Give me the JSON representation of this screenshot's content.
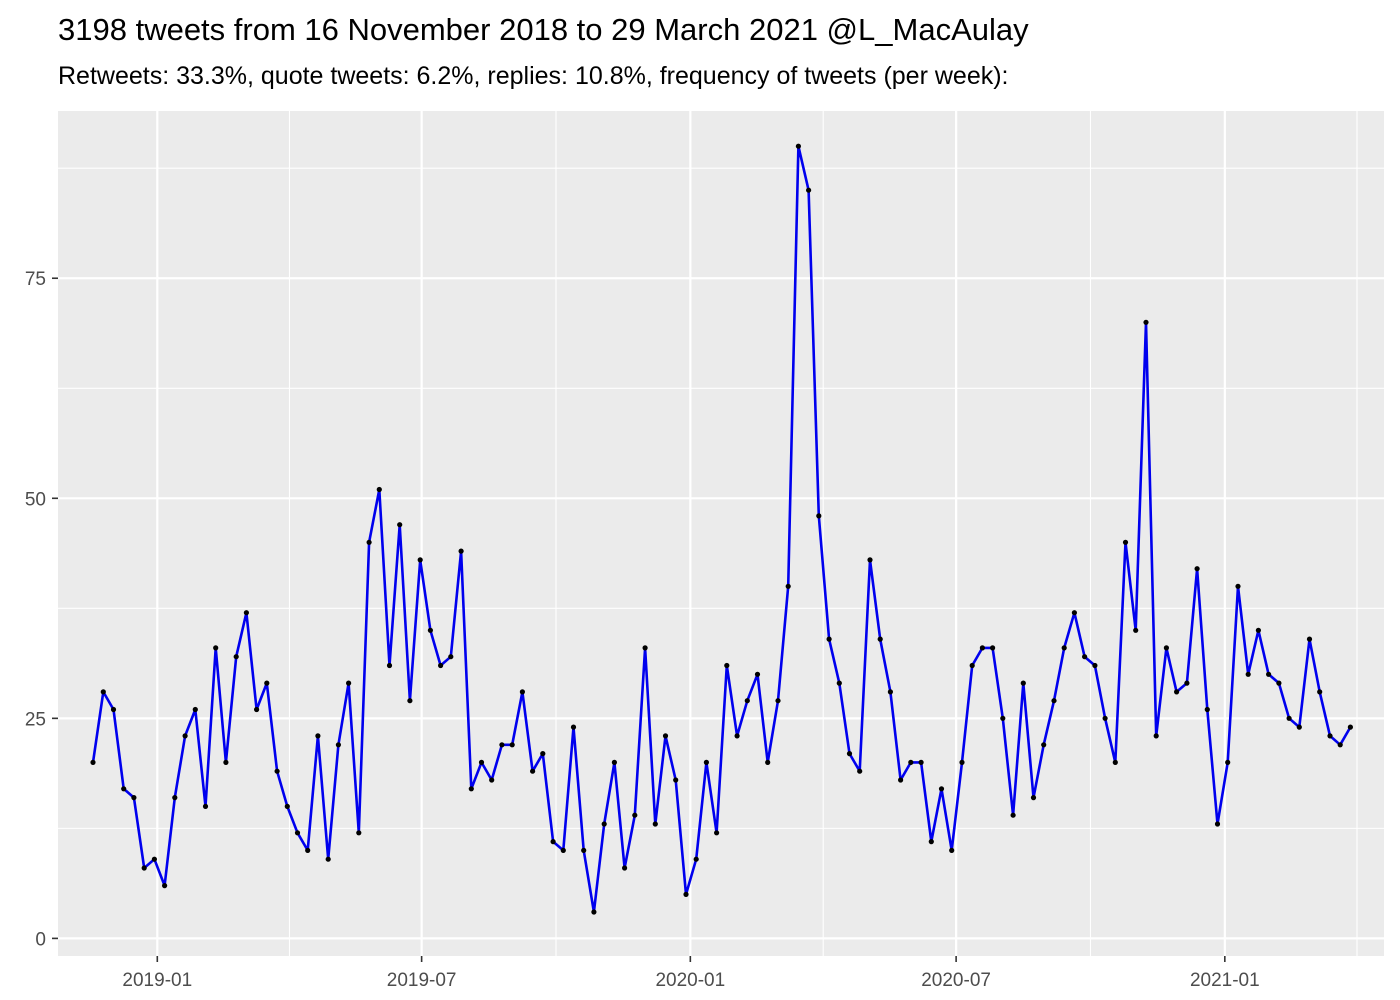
{
  "chart_data": {
    "type": "line",
    "title": "3198 tweets from 16 November 2018 to 29 March 2021 @L_MacAulay",
    "subtitle": "Retweets: 33.3%, quote tweets: 6.2%, replies: 10.8%, frequency of tweets (per week):",
    "xlabel": "",
    "ylabel": "",
    "x_axis": {
      "type": "date",
      "range": [
        "2018-10-25",
        "2021-04-20"
      ],
      "tick_dates": [
        "2019-01-01",
        "2019-07-01",
        "2020-01-01",
        "2020-07-01",
        "2021-01-01"
      ],
      "tick_labels": [
        "2019-01",
        "2019-07",
        "2020-01",
        "2020-07",
        "2021-01"
      ]
    },
    "y_axis": {
      "range": [
        -2,
        94
      ],
      "ticks": [
        0,
        25,
        50,
        75
      ],
      "tick_labels": [
        "0",
        "25",
        "50",
        "75"
      ]
    },
    "grid": true,
    "legend": "none",
    "colors": {
      "line": "#0000ee",
      "point": "#000000",
      "panel": "#ebebeb",
      "grid": "#ffffff"
    },
    "series": [
      {
        "x": [
          "2018-11-18",
          "2018-11-25",
          "2018-12-02",
          "2018-12-09",
          "2018-12-16",
          "2018-12-23",
          "2018-12-30",
          "2019-01-06",
          "2019-01-13",
          "2019-01-20",
          "2019-01-27",
          "2019-02-03",
          "2019-02-10",
          "2019-02-17",
          "2019-02-24",
          "2019-03-03",
          "2019-03-10",
          "2019-03-17",
          "2019-03-24",
          "2019-03-31",
          "2019-04-07",
          "2019-04-14",
          "2019-04-21",
          "2019-04-28",
          "2019-05-05",
          "2019-05-12",
          "2019-05-19",
          "2019-05-26",
          "2019-06-02",
          "2019-06-09",
          "2019-06-16",
          "2019-06-23",
          "2019-06-30",
          "2019-07-07",
          "2019-07-14",
          "2019-07-21",
          "2019-07-28",
          "2019-08-04",
          "2019-08-11",
          "2019-08-18",
          "2019-08-25",
          "2019-09-01",
          "2019-09-08",
          "2019-09-15",
          "2019-09-22",
          "2019-09-29",
          "2019-10-06",
          "2019-10-13",
          "2019-10-20",
          "2019-10-27",
          "2019-11-03",
          "2019-11-10",
          "2019-11-17",
          "2019-11-24",
          "2019-12-01",
          "2019-12-08",
          "2019-12-15",
          "2019-12-22",
          "2019-12-29",
          "2020-01-05",
          "2020-01-12",
          "2020-01-19",
          "2020-01-26",
          "2020-02-02",
          "2020-02-09",
          "2020-02-16",
          "2020-02-23",
          "2020-03-01",
          "2020-03-08",
          "2020-03-15",
          "2020-03-22",
          "2020-03-29",
          "2020-04-05",
          "2020-04-12",
          "2020-04-19",
          "2020-04-26",
          "2020-05-03",
          "2020-05-10",
          "2020-05-17",
          "2020-05-24",
          "2020-05-31",
          "2020-06-07",
          "2020-06-14",
          "2020-06-21",
          "2020-06-28",
          "2020-07-05",
          "2020-07-12",
          "2020-07-19",
          "2020-07-26",
          "2020-08-02",
          "2020-08-09",
          "2020-08-16",
          "2020-08-23",
          "2020-08-30",
          "2020-09-06",
          "2020-09-13",
          "2020-09-20",
          "2020-09-27",
          "2020-10-04",
          "2020-10-11",
          "2020-10-18",
          "2020-10-25",
          "2020-11-01",
          "2020-11-08",
          "2020-11-15",
          "2020-11-22",
          "2020-11-29",
          "2020-12-06",
          "2020-12-13",
          "2020-12-20",
          "2020-12-27",
          "2021-01-03",
          "2021-01-10",
          "2021-01-17",
          "2021-01-24",
          "2021-01-31",
          "2021-02-07",
          "2021-02-14",
          "2021-02-21",
          "2021-02-28",
          "2021-03-07",
          "2021-03-14",
          "2021-03-21",
          "2021-03-28"
        ],
        "values": [
          20,
          28,
          26,
          17,
          16,
          8,
          9,
          6,
          16,
          23,
          26,
          15,
          33,
          20,
          32,
          37,
          26,
          29,
          19,
          15,
          12,
          10,
          23,
          9,
          22,
          29,
          12,
          45,
          51,
          31,
          47,
          27,
          43,
          35,
          31,
          32,
          44,
          17,
          20,
          18,
          22,
          22,
          28,
          19,
          21,
          11,
          10,
          24,
          10,
          3,
          13,
          20,
          8,
          14,
          33,
          13,
          23,
          18,
          5,
          9,
          20,
          12,
          31,
          23,
          27,
          30,
          20,
          27,
          40,
          90,
          85,
          48,
          34,
          29,
          21,
          19,
          43,
          34,
          28,
          18,
          20,
          20,
          11,
          17,
          10,
          20,
          31,
          33,
          33,
          25,
          14,
          29,
          16,
          22,
          27,
          33,
          37,
          32,
          31,
          25,
          20,
          45,
          35,
          70,
          23,
          33,
          28,
          29,
          42,
          26,
          13,
          20,
          40,
          30,
          35,
          30,
          29,
          25,
          24,
          34,
          28,
          23,
          22,
          24
        ]
      }
    ]
  }
}
